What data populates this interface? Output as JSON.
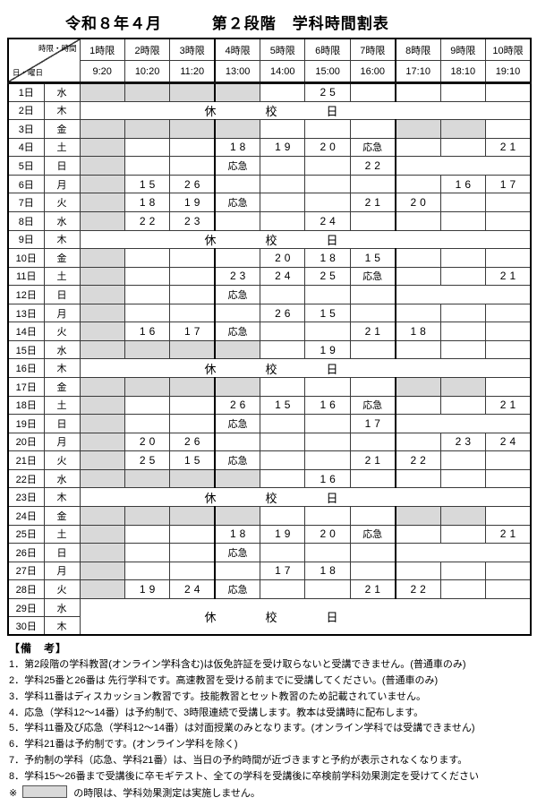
{
  "title": {
    "month": "令和８年４月",
    "stage": "第２段階　学科時間割表"
  },
  "header": {
    "corner_top": "時限・時間",
    "corner_bottom": "日・曜日",
    "periods": [
      "1時限",
      "2時限",
      "3時限",
      "4時限",
      "5時限",
      "6時限",
      "7時限",
      "8時限",
      "9時限",
      "10時限"
    ],
    "times": [
      "9:20",
      "10:20",
      "11:20",
      "13:00",
      "14:00",
      "15:00",
      "16:00",
      "17:10",
      "18:10",
      "19:10"
    ]
  },
  "closed_label": "休校日",
  "colors": {
    "unavailable_fill": "#d9d9d9",
    "border": "#3a3a3a"
  },
  "rows": [
    {
      "day": "1日",
      "wd": "水",
      "cells": [
        "",
        "",
        "",
        "",
        "",
        "25",
        "",
        "",
        "",
        ""
      ],
      "gray": [
        1,
        2,
        3,
        4
      ]
    },
    {
      "day": "2日",
      "wd": "木",
      "closed": true
    },
    {
      "day": "3日",
      "wd": "金",
      "cells": [
        "",
        "",
        "",
        "",
        "",
        "",
        "",
        "",
        "",
        ""
      ],
      "gray": [
        1,
        2,
        3,
        4,
        8,
        9
      ]
    },
    {
      "day": "4日",
      "wd": "土",
      "cells": [
        "",
        "",
        "",
        "18",
        "19",
        "20",
        "応急",
        "",
        "",
        "21"
      ],
      "gray": [
        1
      ]
    },
    {
      "day": "5日",
      "wd": "日",
      "cells": [
        "",
        "",
        "",
        "応急",
        "",
        "",
        "22",
        "",
        "",
        ""
      ],
      "gray": [
        1
      ],
      "merge_evening": true
    },
    {
      "day": "6日",
      "wd": "月",
      "cells": [
        "",
        "15",
        "26",
        "",
        "",
        "",
        "",
        "",
        "16",
        "17"
      ],
      "gray": [
        1
      ]
    },
    {
      "day": "7日",
      "wd": "火",
      "cells": [
        "",
        "18",
        "19",
        "応急",
        "",
        "",
        "21",
        "20",
        "",
        ""
      ],
      "gray": [
        1
      ]
    },
    {
      "day": "8日",
      "wd": "水",
      "cells": [
        "",
        "22",
        "23",
        "",
        "",
        "24",
        "",
        "",
        "",
        ""
      ],
      "gray": [
        1
      ]
    },
    {
      "day": "9日",
      "wd": "木",
      "closed": true
    },
    {
      "day": "10日",
      "wd": "金",
      "cells": [
        "",
        "",
        "",
        "",
        "20",
        "18",
        "15",
        "",
        "",
        ""
      ],
      "gray": [
        1
      ]
    },
    {
      "day": "11日",
      "wd": "土",
      "cells": [
        "",
        "",
        "",
        "23",
        "24",
        "25",
        "応急",
        "",
        "",
        "21"
      ],
      "gray": [
        1
      ]
    },
    {
      "day": "12日",
      "wd": "日",
      "cells": [
        "",
        "",
        "",
        "応急",
        "",
        "",
        "",
        "",
        "",
        ""
      ],
      "gray": [
        1
      ],
      "merge_evening": true
    },
    {
      "day": "13日",
      "wd": "月",
      "cells": [
        "",
        "",
        "",
        "",
        "26",
        "15",
        "",
        "",
        "",
        ""
      ],
      "gray": [
        1
      ]
    },
    {
      "day": "14日",
      "wd": "火",
      "cells": [
        "",
        "16",
        "17",
        "応急",
        "",
        "",
        "21",
        "18",
        "",
        ""
      ],
      "gray": [
        1
      ]
    },
    {
      "day": "15日",
      "wd": "水",
      "cells": [
        "",
        "",
        "",
        "",
        "",
        "19",
        "",
        "",
        "",
        ""
      ],
      "gray": [
        1,
        2,
        3,
        4
      ]
    },
    {
      "day": "16日",
      "wd": "木",
      "closed": true
    },
    {
      "day": "17日",
      "wd": "金",
      "cells": [
        "",
        "",
        "",
        "",
        "",
        "",
        "",
        "",
        "",
        ""
      ],
      "gray": [
        1,
        2,
        3,
        4,
        8,
        9
      ]
    },
    {
      "day": "18日",
      "wd": "土",
      "cells": [
        "",
        "",
        "",
        "26",
        "15",
        "16",
        "応急",
        "",
        "",
        "21"
      ],
      "gray": [
        1
      ]
    },
    {
      "day": "19日",
      "wd": "日",
      "cells": [
        "",
        "",
        "",
        "応急",
        "",
        "",
        "17",
        "",
        "",
        ""
      ],
      "gray": [
        1
      ],
      "merge_evening": true
    },
    {
      "day": "20日",
      "wd": "月",
      "cells": [
        "",
        "20",
        "26",
        "",
        "",
        "",
        "",
        "",
        "23",
        "24"
      ],
      "gray": [
        1
      ]
    },
    {
      "day": "21日",
      "wd": "火",
      "cells": [
        "",
        "25",
        "15",
        "応急",
        "",
        "",
        "21",
        "22",
        "",
        ""
      ],
      "gray": [
        1
      ]
    },
    {
      "day": "22日",
      "wd": "水",
      "cells": [
        "",
        "",
        "",
        "",
        "",
        "16",
        "",
        "",
        "",
        ""
      ],
      "gray": [
        1,
        2,
        3,
        4
      ]
    },
    {
      "day": "23日",
      "wd": "木",
      "closed": true
    },
    {
      "day": "24日",
      "wd": "金",
      "cells": [
        "",
        "",
        "",
        "",
        "",
        "",
        "",
        "",
        "",
        ""
      ],
      "gray": [
        1,
        2,
        3,
        4,
        8,
        9
      ]
    },
    {
      "day": "25日",
      "wd": "土",
      "cells": [
        "",
        "",
        "",
        "18",
        "19",
        "20",
        "応急",
        "",
        "",
        "21"
      ],
      "gray": [
        1
      ]
    },
    {
      "day": "26日",
      "wd": "日",
      "cells": [
        "",
        "",
        "",
        "応急",
        "",
        "",
        "",
        "",
        "",
        ""
      ],
      "gray": [
        1
      ],
      "merge_evening": true
    },
    {
      "day": "27日",
      "wd": "月",
      "cells": [
        "",
        "",
        "",
        "",
        "17",
        "18",
        "",
        "",
        "",
        ""
      ],
      "gray": [
        1
      ]
    },
    {
      "day": "28日",
      "wd": "火",
      "cells": [
        "",
        "19",
        "24",
        "応急",
        "",
        "",
        "21",
        "22",
        "",
        ""
      ],
      "gray": [
        1
      ]
    },
    {
      "day": "29日",
      "wd": "水",
      "closed2": "start"
    },
    {
      "day": "30日",
      "wd": "木",
      "closed2": "end"
    }
  ],
  "remarks": {
    "heading": "【備　考】",
    "items": [
      "1．第2段階の学科教習(オンライン学科含む)は仮免許証を受け取らないと受講できません。(普通車のみ)",
      "2．学科25番と26番は 先行学科です。高速教習を受ける前までに受講してください。(普通車のみ)",
      "3．学科11番はディスカッション教習です。技能教習とセット教習のため記載されていません。",
      "4．応急（学科12～14番）は予約制で、3時限連続で受講します。教本は受講時に配布します。",
      "5．学科11番及び応急（学科12～14番）は対面授業のみとなります。(オンライン学科では受講できません)",
      "6．学科21番は予約制です。(オンライン学科を除く)",
      "7．予約制の学科（応急、学科21番）は、当日の予約時間が近づきますと予約が表示されなくなります。",
      "8．学科15～26番まで受講後に卒モギテスト、全ての学科を受講後に卒検前学科効果測定を受けてください"
    ],
    "note_prefix": "※",
    "note_suffix": "の時限は、学科効果測定は実施しません。"
  }
}
